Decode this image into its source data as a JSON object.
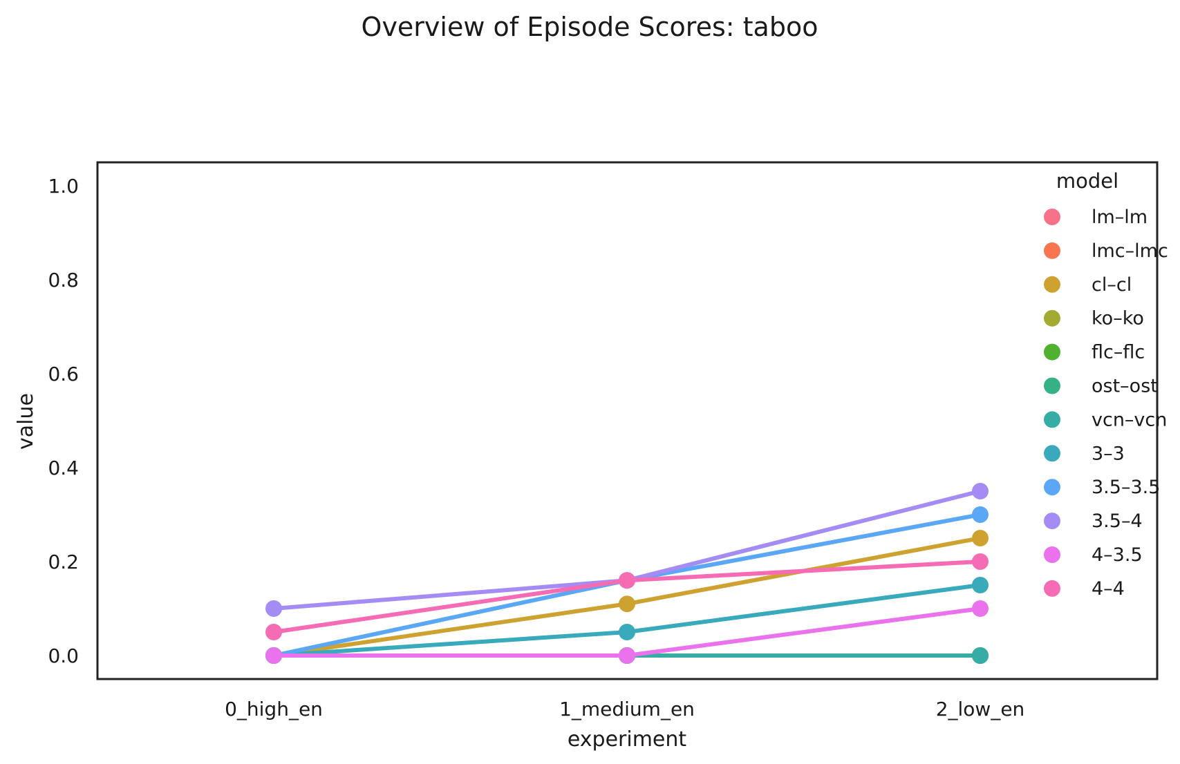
{
  "chart_data": {
    "type": "line",
    "title": "Overview of Episode Scores: taboo",
    "xlabel": "experiment",
    "ylabel": "value",
    "categories": [
      "0_high_en",
      "1_medium_en",
      "2_low_en"
    ],
    "ylim": [
      -0.05,
      1.05
    ],
    "yticks": [
      "0.0",
      "0.2",
      "0.4",
      "0.6",
      "0.8",
      "1.0"
    ],
    "grid": false,
    "legend": {
      "title": "model",
      "placement": "top-right"
    },
    "series": [
      {
        "name": "lm–lm",
        "color": "#f77189",
        "values": [
          0.0,
          0.0,
          0.0
        ]
      },
      {
        "name": "lmc–lmc",
        "color": "#f7754f",
        "values": [
          0.0,
          0.0,
          0.0
        ]
      },
      {
        "name": "cl–cl",
        "color": "#cea231",
        "values": [
          0.0,
          0.11,
          0.25
        ]
      },
      {
        "name": "ko–ko",
        "color": "#a3aa31",
        "values": [
          0.0,
          0.0,
          0.0
        ]
      },
      {
        "name": "flc–flc",
        "color": "#50b131",
        "values": [
          0.0,
          0.0,
          0.0
        ]
      },
      {
        "name": "ost–ost",
        "color": "#34b285",
        "values": [
          0.0,
          0.0,
          0.0
        ]
      },
      {
        "name": "vcn–vcn",
        "color": "#36ada4",
        "values": [
          0.0,
          0.0,
          0.0
        ]
      },
      {
        "name": "3–3",
        "color": "#38aabb",
        "values": [
          0.0,
          0.05,
          0.15
        ]
      },
      {
        "name": "3.5–3.5",
        "color": "#5aa8f5",
        "values": [
          0.0,
          0.16,
          0.3
        ]
      },
      {
        "name": "3.5–4",
        "color": "#a48cf4",
        "values": [
          0.1,
          0.16,
          0.35
        ]
      },
      {
        "name": "4–3.5",
        "color": "#ea72ec",
        "values": [
          0.0,
          0.0,
          0.1
        ]
      },
      {
        "name": "4–4",
        "color": "#f56cb5",
        "values": [
          0.05,
          0.16,
          0.2
        ]
      }
    ]
  }
}
